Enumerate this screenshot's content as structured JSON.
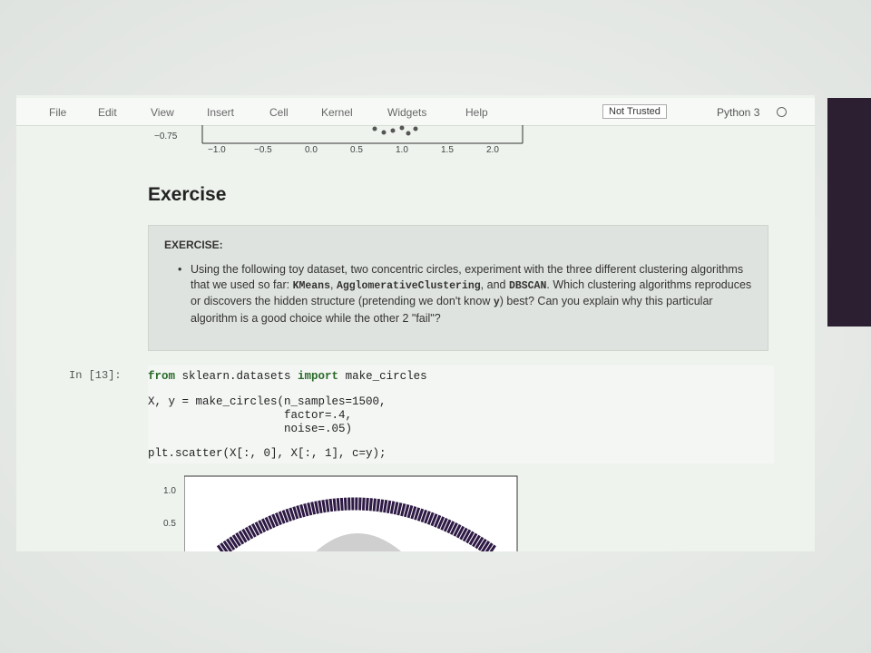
{
  "menu": {
    "items": [
      "File",
      "Edit",
      "View",
      "Insert",
      "Cell",
      "Kernel",
      "Widgets",
      "Help"
    ],
    "trust": "Not Trusted",
    "kernel": "Python 3"
  },
  "top_plot": {
    "yticks": [
      "−0.75"
    ],
    "xticks": [
      "−1.0",
      "−0.5",
      "0.0",
      "0.5",
      "1.0",
      "1.5",
      "2.0"
    ]
  },
  "heading": "Exercise",
  "exercise": {
    "label": "EXERCISE:",
    "bullet": [
      "Using the following toy dataset, two concentric circles, experiment with the three different clustering algorithms that we used so far: ",
      "KMeans",
      ", ",
      "AgglomerativeClustering",
      ", and ",
      "DBSCAN",
      ". Which clustering algorithms reproduces or discovers the hidden structure (pretending we don't know ",
      "y",
      ") best? Can you explain why this particular algorithm is a good choice while the other 2 \"fail\"?"
    ]
  },
  "code_cell": {
    "prompt": "In [13]:",
    "lines": [
      [
        "from",
        " sklearn.datasets ",
        "import",
        " make_circles"
      ],
      [
        "X, y = make_circles(n_samples=1500,"
      ],
      [
        "                    factor=.4,"
      ],
      [
        "                    noise=.05)"
      ],
      [
        "plt.scatter(X[:, 0], X[:, 1], c=y);"
      ]
    ]
  },
  "bottom_plot": {
    "yticks": [
      "1.0",
      "0.5"
    ]
  }
}
